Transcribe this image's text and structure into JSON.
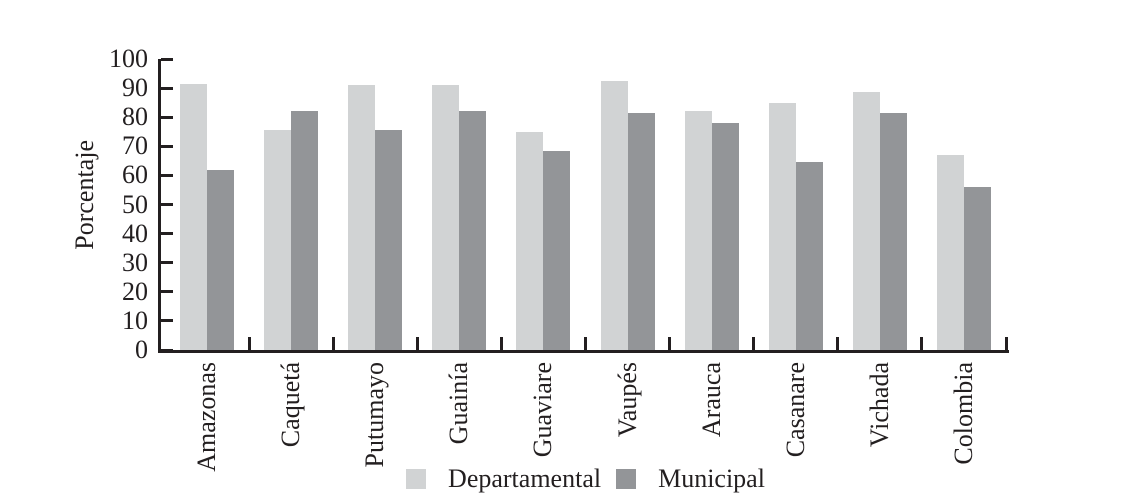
{
  "chart_data": {
    "type": "bar",
    "title": "",
    "xlabel": "",
    "ylabel": "Porcentaje",
    "ylim": [
      0,
      100
    ],
    "yticks": [
      0,
      10,
      20,
      30,
      40,
      50,
      60,
      70,
      80,
      90,
      100
    ],
    "grid": false,
    "legend_position": "bottom",
    "categories": [
      "Amazonas",
      "Caquetá",
      "Putumayo",
      "Guainía",
      "Guaviare",
      "Vaupés",
      "Arauca",
      "Casanare",
      "Vichada",
      "Colombia"
    ],
    "series": [
      {
        "name": "Departamental",
        "color": "#d1d3d4",
        "values": [
          91.5,
          75.5,
          91,
          91,
          75,
          92.5,
          82,
          85,
          88.5,
          67
        ]
      },
      {
        "name": "Municipal",
        "color": "#939598",
        "values": [
          62,
          82,
          75.5,
          82,
          68.5,
          81.5,
          78,
          64.5,
          81.5,
          56
        ]
      }
    ],
    "colors": {
      "axis": "#231f20",
      "text": "#231f20",
      "background": "#ffffff"
    }
  }
}
